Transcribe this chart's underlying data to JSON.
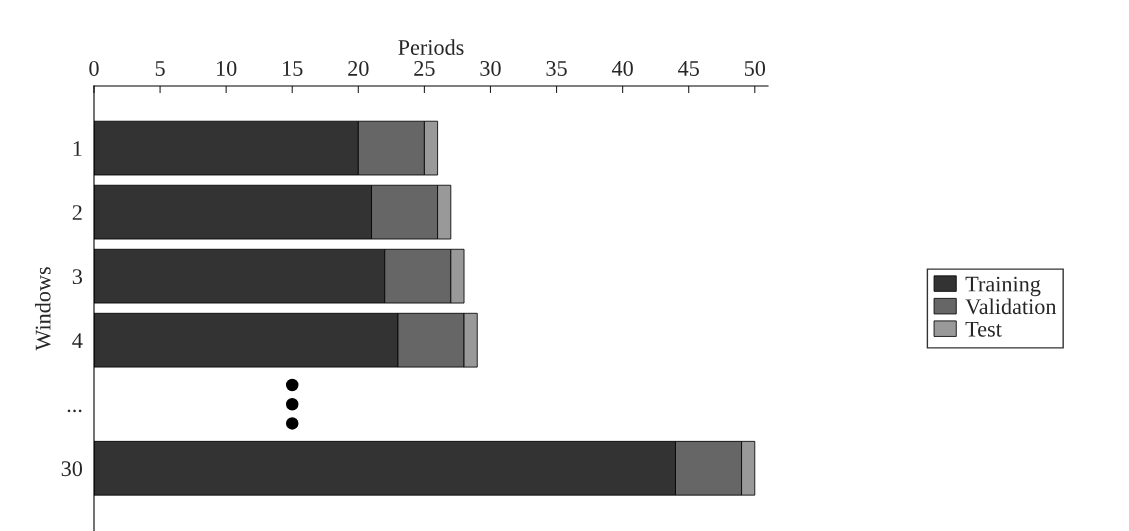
{
  "chart_data": {
    "type": "bar",
    "orientation": "horizontal",
    "stacked": true,
    "xlabel": "Periods",
    "ylabel": "Windows",
    "categories": [
      "1",
      "2",
      "3",
      "4",
      "...",
      "30"
    ],
    "series": [
      {
        "name": "Training",
        "color": "#333333",
        "values": [
          20,
          21,
          22,
          23,
          null,
          44
        ]
      },
      {
        "name": "Validation",
        "color": "#666666",
        "values": [
          5,
          5,
          5,
          5,
          null,
          5
        ]
      },
      {
        "name": "Test",
        "color": "#999999",
        "values": [
          1,
          1,
          1,
          1,
          null,
          1
        ]
      }
    ],
    "xlim": [
      0,
      51
    ],
    "xticks": [
      0,
      5,
      10,
      15,
      20,
      25,
      30,
      35,
      40,
      45,
      50
    ],
    "grid": false,
    "legend": "right"
  }
}
